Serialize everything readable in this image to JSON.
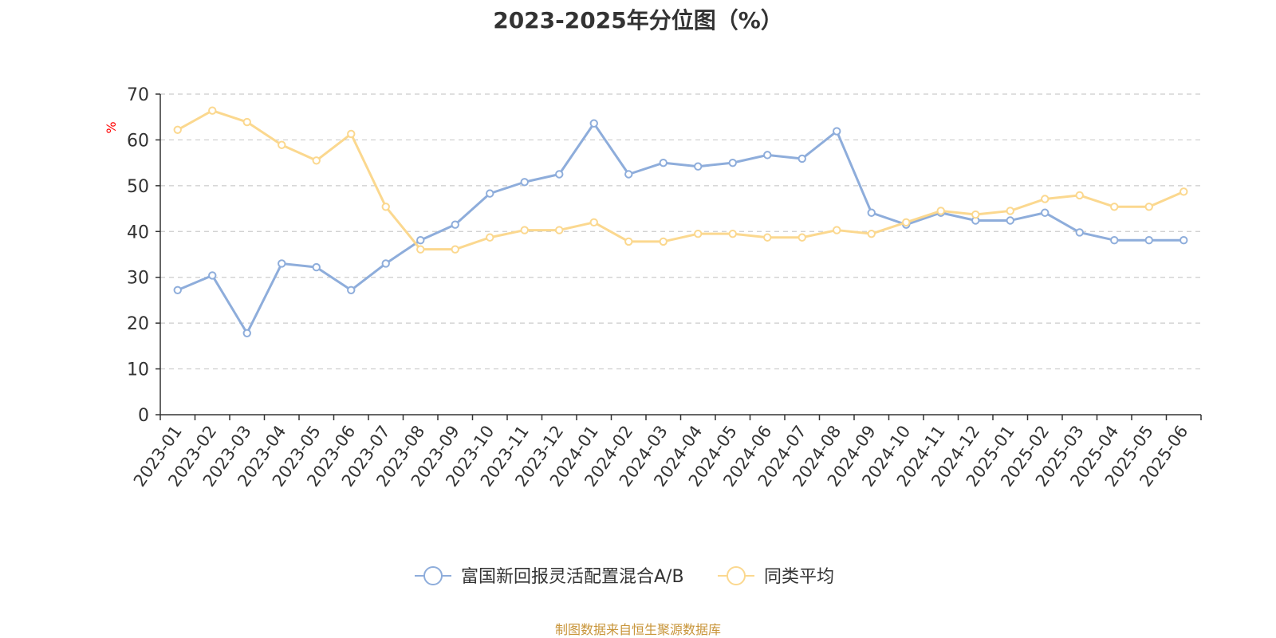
{
  "title": "2023-2025年分位图（%）",
  "source_note": "制图数据来自恒生聚源数据库",
  "colors": {
    "series1": "#8eaddb",
    "series2": "#fbd88f",
    "axis": "#333333",
    "grid": "#cccccc",
    "ylabel": "#ff0000",
    "source": "#c8953a",
    "title": "#333333"
  },
  "chart_data": {
    "type": "line",
    "title": "2023-2025年分位图（%）",
    "xlabel": "",
    "ylabel": "%",
    "ylim": [
      0,
      70
    ],
    "yticks": [
      0,
      10,
      20,
      30,
      40,
      50,
      60,
      70
    ],
    "grid": true,
    "legend": "bottom-center",
    "categories": [
      "2023-01",
      "2023-02",
      "2023-03",
      "2023-04",
      "2023-05",
      "2023-06",
      "2023-07",
      "2023-08",
      "2023-09",
      "2023-10",
      "2023-11",
      "2023-12",
      "2024-01",
      "2024-02",
      "2024-03",
      "2024-04",
      "2024-05",
      "2024-06",
      "2024-07",
      "2024-08",
      "2024-09",
      "2024-10",
      "2024-11",
      "2024-12",
      "2025-01",
      "2025-02",
      "2025-03",
      "2025-04",
      "2025-05",
      "2025-06"
    ],
    "series": [
      {
        "name": "富国新回报灵活配置混合A/B",
        "values": [
          27.2,
          30.4,
          17.8,
          33.0,
          32.2,
          27.2,
          33.0,
          38.1,
          41.5,
          48.3,
          50.8,
          52.5,
          63.6,
          52.5,
          55.0,
          54.2,
          55.0,
          56.7,
          55.9,
          61.9,
          44.1,
          41.5,
          44.1,
          42.4,
          42.4,
          44.1,
          39.8,
          38.1,
          38.1,
          38.1
        ]
      },
      {
        "name": "同类平均",
        "values": [
          62.2,
          66.4,
          63.9,
          58.9,
          55.5,
          61.3,
          45.4,
          36.1,
          36.1,
          38.7,
          40.3,
          40.3,
          42.0,
          37.8,
          37.8,
          39.5,
          39.5,
          38.7,
          38.7,
          40.3,
          39.5,
          42.0,
          44.5,
          43.7,
          44.5,
          47.1,
          47.9,
          45.4,
          45.4,
          48.7
        ]
      }
    ]
  }
}
